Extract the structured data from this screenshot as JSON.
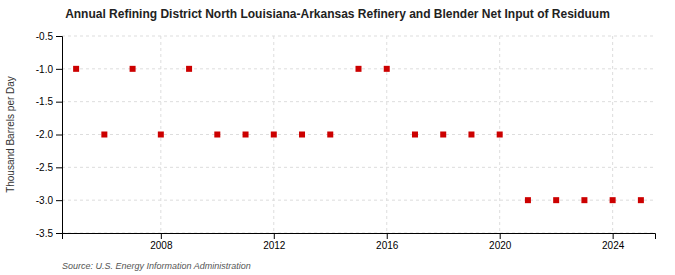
{
  "chart_data": {
    "type": "scatter",
    "title": "Annual Refining District North Louisiana-Arkansas Refinery and Blender Net Input of Residuum",
    "ylabel": "Thousand Barrels per Day",
    "source": "Source: U.S. Energy Information Administration",
    "x": [
      2005,
      2006,
      2007,
      2008,
      2009,
      2010,
      2011,
      2012,
      2013,
      2014,
      2015,
      2016,
      2017,
      2018,
      2019,
      2020,
      2021,
      2022,
      2023,
      2024,
      2025
    ],
    "values": [
      -1,
      -2,
      -1,
      -2,
      -1,
      -2,
      -2,
      -2,
      -2,
      -2,
      -1,
      -1,
      -2,
      -2,
      -2,
      -2,
      -3,
      -3,
      -3,
      -3,
      -3
    ],
    "color": "#cc0000",
    "marker": "square",
    "xlim": [
      2004.5,
      2025.5
    ],
    "xticks": [
      2008,
      2012,
      2016,
      2020,
      2024
    ],
    "ylim": [
      -3.5,
      -0.5
    ],
    "yticks": [
      -3.5,
      {
        "value": -3,
        "label": "-3.0"
      },
      -2.5,
      {
        "value": -2,
        "label": "-2.0"
      },
      -1.5,
      {
        "value": -1,
        "label": "-1.0"
      },
      -0.5
    ],
    "grid": true
  }
}
